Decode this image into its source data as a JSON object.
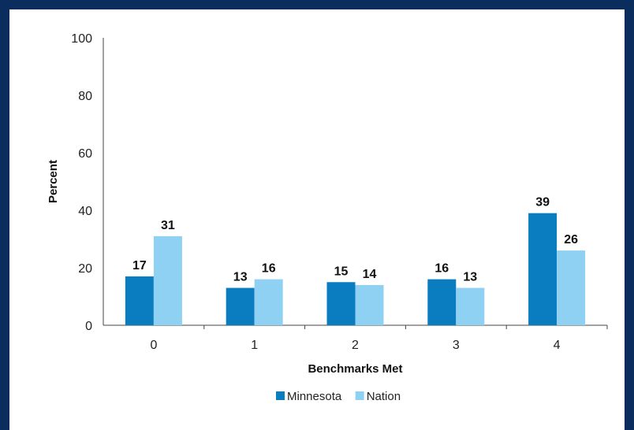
{
  "chart_data": {
    "type": "bar",
    "categories": [
      "0",
      "1",
      "2",
      "3",
      "4"
    ],
    "series": [
      {
        "name": "Minnesota",
        "values": [
          17,
          13,
          15,
          16,
          39
        ],
        "color": "#0a7cc0"
      },
      {
        "name": "Nation",
        "values": [
          31,
          16,
          14,
          13,
          26
        ],
        "color": "#8fd1f2"
      }
    ],
    "xlabel": "Benchmarks Met",
    "ylabel": "Percent",
    "ylim": [
      0,
      100
    ],
    "yticks": [
      0,
      20,
      40,
      60,
      80,
      100
    ],
    "grid": false,
    "legend_position": "bottom"
  },
  "colors": {
    "background_frame": "#0a2d5e",
    "panel": "#ffffff",
    "axis": "#444444"
  }
}
